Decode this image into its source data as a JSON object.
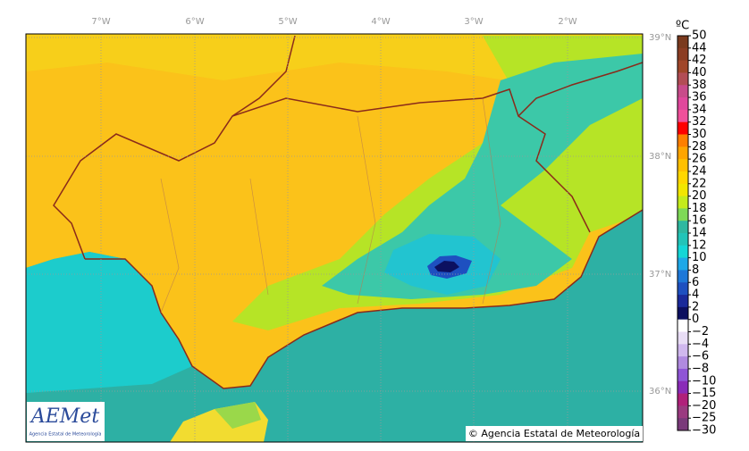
{
  "map": {
    "longitude_labels": [
      "7°W",
      "6°W",
      "5°W",
      "4°W",
      "3°W",
      "2°W"
    ],
    "latitude_labels": [
      "39°N",
      "38°N",
      "37°N",
      "36°N"
    ],
    "colorbar": {
      "unit": "ºC",
      "labels": [
        "50",
        "44",
        "42",
        "40",
        "38",
        "36",
        "34",
        "32",
        "30",
        "28",
        "26",
        "24",
        "22",
        "20",
        "18",
        "16",
        "14",
        "12",
        "10",
        "8",
        "6",
        "4",
        "2",
        "0",
        "−2",
        "−4",
        "−6",
        "−8",
        "−10",
        "−15",
        "−20",
        "−25",
        "−30"
      ],
      "colors": [
        "#7a3a1e",
        "#8b3d23",
        "#a0472a",
        "#b24d55",
        "#c84b8a",
        "#e0479c",
        "#f0509a",
        "#ff0000",
        "#ff7f00",
        "#ffa500",
        "#ffc000",
        "#ffd700",
        "#f2e600",
        "#c4ec1c",
        "#7ed957",
        "#2eb8a0",
        "#22c4b8",
        "#14d6d6",
        "#1ea8e8",
        "#1e78d8",
        "#1e50c0",
        "#1a2a9a",
        "#0c1060",
        "#ffffff",
        "#e8ddf5",
        "#d0b8ee",
        "#b08ae0",
        "#8f55d6",
        "#8a2bb8",
        "#b0207a",
        "#9a3a80",
        "#7a3a7a"
      ]
    }
  },
  "logo": {
    "name": "AEMet",
    "subtitle": "Agencia Estatal de Meteorología"
  },
  "copyright": "© Agencia Estatal de Meteorología"
}
